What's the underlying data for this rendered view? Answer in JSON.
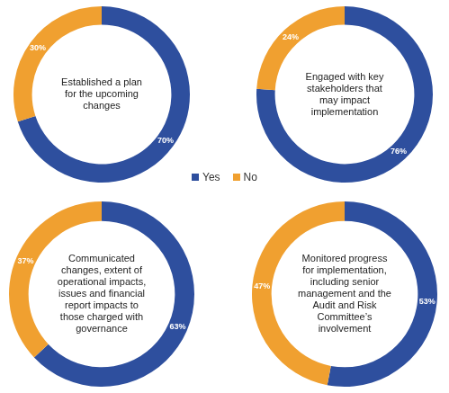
{
  "chart_data": [
    {
      "type": "doughnut",
      "title": "Established a plan for the upcoming changes",
      "categories": [
        "Yes",
        "No"
      ],
      "values": [
        70,
        30
      ],
      "value_labels": [
        "70%",
        "30%"
      ],
      "colors": [
        "#2e4f9e",
        "#f0a030"
      ],
      "data_labels": true,
      "legend": "center"
    },
    {
      "type": "doughnut",
      "title": "Engaged with key stakeholders that may impact implementation",
      "categories": [
        "Yes",
        "No"
      ],
      "values": [
        76,
        24
      ],
      "value_labels": [
        "76%",
        "24%"
      ],
      "colors": [
        "#2e4f9e",
        "#f0a030"
      ],
      "data_labels": true,
      "legend": "center"
    },
    {
      "type": "doughnut",
      "title": "Communicated changes, extent of operational impacts, issues and financial report impacts to those charged with governance",
      "categories": [
        "Yes",
        "No"
      ],
      "values": [
        63,
        37
      ],
      "value_labels": [
        "63%",
        "37%"
      ],
      "colors": [
        "#2e4f9e",
        "#f0a030"
      ],
      "data_labels": true,
      "legend": "center"
    },
    {
      "type": "doughnut",
      "title": "Monitored progress for implementation, including senior management and the Audit and Risk Committee’s involvement",
      "categories": [
        "Yes",
        "No"
      ],
      "values": [
        53,
        47
      ],
      "value_labels": [
        "53%",
        "47%"
      ],
      "colors": [
        "#2e4f9e",
        "#f0a030"
      ],
      "data_labels": true,
      "legend": "center"
    }
  ]
}
